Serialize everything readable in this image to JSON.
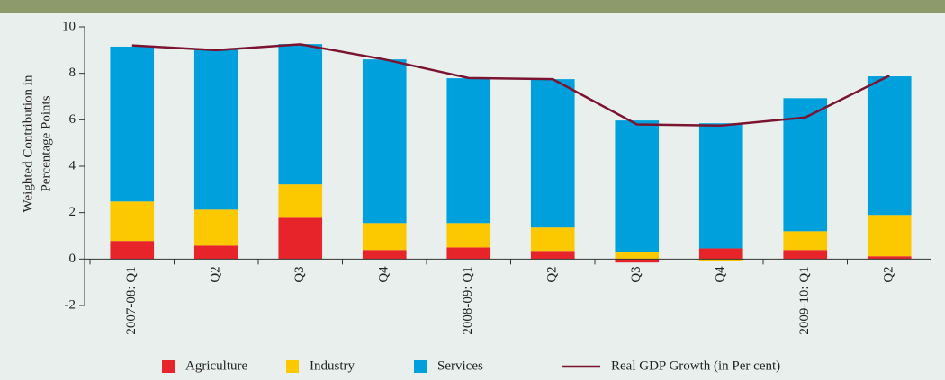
{
  "chart_data": {
    "type": "stacked_bar_line",
    "y_label": [
      "Weighted Contribution in",
      "Percentage Points"
    ],
    "categories": [
      "2007-08: Q1",
      "Q2",
      "Q3",
      "Q4",
      "2008-09: Q1",
      "Q2",
      "Q3",
      "Q4",
      "2009-10: Q1",
      "Q2"
    ],
    "series": [
      {
        "name": "Agriculture",
        "color": "#e8242b",
        "values": [
          0.78,
          0.58,
          1.78,
          0.39,
          0.5,
          0.35,
          -0.15,
          0.46,
          0.39,
          0.12
        ]
      },
      {
        "name": "Industry",
        "color": "#fcc800",
        "values": [
          1.7,
          1.55,
          1.44,
          1.16,
          1.05,
          1.01,
          0.31,
          -0.1,
          0.81,
          1.78
        ]
      },
      {
        "name": "Services",
        "color": "#00a0dc",
        "values": [
          6.67,
          6.9,
          6.04,
          7.05,
          6.24,
          6.39,
          5.66,
          5.39,
          5.73,
          5.97
        ]
      },
      {
        "name": "Real GDP Growth (in Per cent)",
        "color": "#7b1430",
        "type": "line",
        "values": [
          9.2,
          9.0,
          9.25,
          8.6,
          7.8,
          7.75,
          5.8,
          5.75,
          6.1,
          7.9
        ]
      }
    ],
    "ylim": [
      -2,
      10
    ],
    "yticks": [
      -2,
      0,
      2,
      4,
      6,
      8,
      10
    ],
    "legend": "bottom"
  }
}
